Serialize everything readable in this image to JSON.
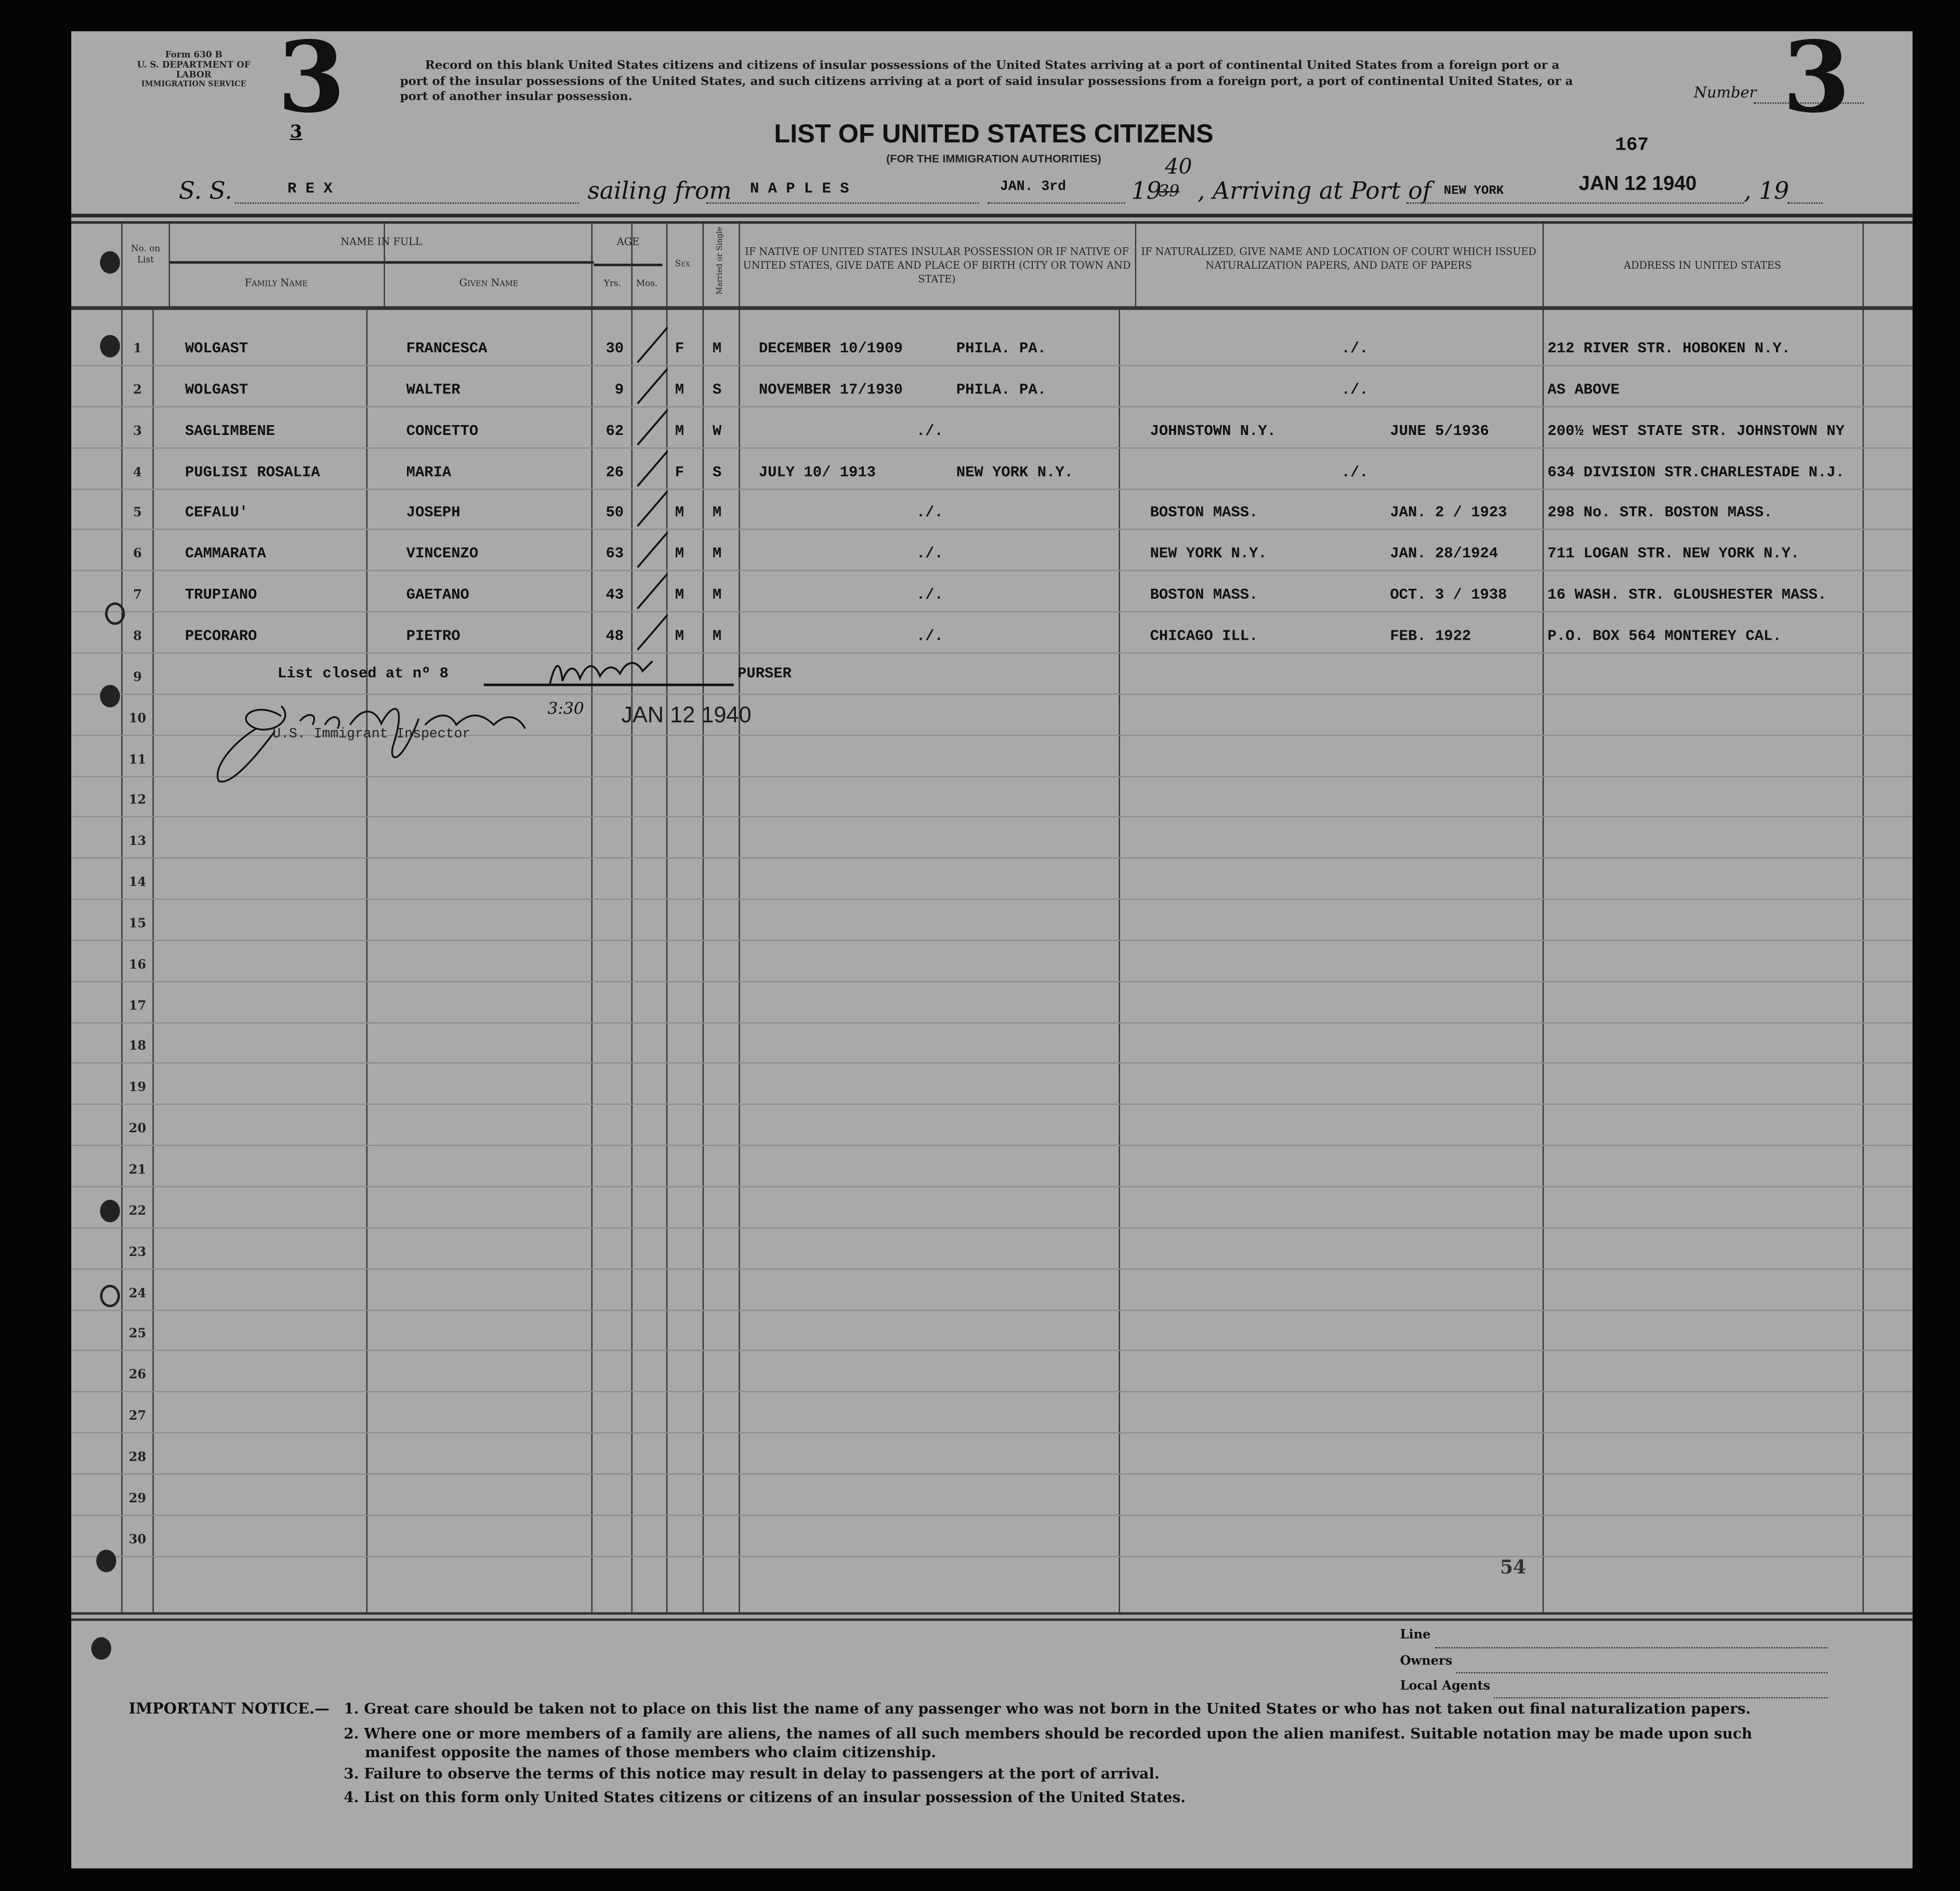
{
  "form": {
    "form_number": "Form 630 B",
    "department": "U. S. DEPARTMENT OF LABOR",
    "service": "IMMIGRATION SERVICE",
    "big_number_left": "3",
    "small_number": "3",
    "number_label": "Number",
    "big_number_right": "3",
    "instructions": "Record on this blank United States citizens and citizens of insular possessions of the United States arriving at a port of continental United States from a foreign port or a port of the insular possessions of the United States, and such citizens arriving at a port of said insular possessions from a foreign port, a port of continental United States, or a port of another insular possession.",
    "title": "LIST OF UNITED STATES CITIZENS",
    "subtitle": "(FOR THE IMMIGRATION AUTHORITIES)",
    "stamp_number": "167"
  },
  "voyage": {
    "ss_label": "S. S.",
    "ship": "R E X",
    "sailing_label": "sailing from",
    "port_from": "N A P L E S",
    "date_from": "JAN. 3rd",
    "year_prefix": "19",
    "year_typed": "39",
    "year_hand": "40",
    "arriving_label": ", Arriving at Port of",
    "port_to": "NEW YORK",
    "arrival_stamp": "JAN 12 1940",
    "year_suffix": ", 19"
  },
  "columns": {
    "no": "No. on List",
    "name_in_full": "NAME IN FULL",
    "family_name": "Family Name",
    "given_name": "Given Name",
    "age": "AGE",
    "yrs": "Yrs.",
    "mos": "Mos.",
    "sex": "Sex",
    "married": "Married or Single",
    "birth": "IF NATIVE OF UNITED STATES INSULAR POSSESSION OR IF NATIVE OF UNITED STATES, GIVE DATE AND PLACE OF BIRTH (CITY OR TOWN AND STATE)",
    "naturalized": "IF NATURALIZED, GIVE NAME AND LOCATION OF COURT WHICH ISSUED NATURALIZATION PAPERS, AND DATE OF PAPERS",
    "address": "ADDRESS IN UNITED STATES"
  },
  "rows": [
    {
      "no": "1",
      "family": "WOLGAST",
      "given": "FRANCESCA",
      "yrs": "30",
      "sex": "F",
      "status": "M",
      "birth_date": "DECEMBER 10/1909",
      "birth_place": "PHILA. PA.",
      "birth_mark": "",
      "court": "",
      "court_mark": "./.",
      "nat_date": "",
      "address": "212 RIVER STR. HOBOKEN N.Y."
    },
    {
      "no": "2",
      "family": "WOLGAST",
      "given": "WALTER",
      "yrs": "9",
      "sex": "M",
      "status": "S",
      "birth_date": "NOVEMBER 17/1930",
      "birth_place": "PHILA. PA.",
      "birth_mark": "",
      "court": "",
      "court_mark": "./.",
      "nat_date": "",
      "address": "AS  ABOVE"
    },
    {
      "no": "3",
      "family": "SAGLIMBENE",
      "given": "CONCETTO",
      "yrs": "62",
      "sex": "M",
      "status": "W",
      "birth_date": "",
      "birth_place": "",
      "birth_mark": "./.",
      "court": "JOHNSTOWN N.Y.",
      "court_mark": "",
      "nat_date": "JUNE  5/1936",
      "address": "200½ WEST STATE STR. JOHNSTOWN NY"
    },
    {
      "no": "4",
      "family": "PUGLISI   ROSALIA",
      "given": "MARIA",
      "yrs": "26",
      "sex": "F",
      "status": "S",
      "birth_date": "JULY  10/ 1913",
      "birth_place": "NEW YORK N.Y.",
      "birth_mark": "",
      "court": "",
      "court_mark": "./.",
      "nat_date": "",
      "address": "634 DIVISION STR.CHARLESTADE N.J."
    },
    {
      "no": "5",
      "family": "CEFALU'",
      "given": "JOSEPH",
      "yrs": "50",
      "sex": "M",
      "status": "M",
      "birth_date": "",
      "birth_place": "",
      "birth_mark": "./.",
      "court": "BOSTON  MASS.",
      "court_mark": "",
      "nat_date": "JAN. 2 / 1923",
      "address": "298 No. STR. BOSTON MASS."
    },
    {
      "no": "6",
      "family": "CAMMARATA",
      "given": "VINCENZO",
      "yrs": "63",
      "sex": "M",
      "status": "M",
      "birth_date": "",
      "birth_place": "",
      "birth_mark": "./.",
      "court": "NEW YORK N.Y.",
      "court_mark": "",
      "nat_date": "JAN. 28/1924",
      "address": "711 LOGAN STR.  NEW YORK N.Y."
    },
    {
      "no": "7",
      "family": "TRUPIANO",
      "given": "GAETANO",
      "yrs": "43",
      "sex": "M",
      "status": "M",
      "birth_date": "",
      "birth_place": "",
      "birth_mark": "./.",
      "court": "BOSTON  MASS.",
      "court_mark": "",
      "nat_date": "OCT. 3 / 1938",
      "address": "16 WASH. STR. GLOUSHESTER MASS."
    },
    {
      "no": "8",
      "family": "PECORARO",
      "given": "PIETRO",
      "yrs": "48",
      "sex": "M",
      "status": "M",
      "birth_date": "",
      "birth_place": "",
      "birth_mark": "./.",
      "court": "CHICAGO  ILL.",
      "court_mark": "",
      "nat_date": "FEB. 1922",
      "address": "P.O. BOX 564 MONTEREY CAL."
    }
  ],
  "row_numbers": [
    "1",
    "2",
    "3",
    "4",
    "5",
    "6",
    "7",
    "8",
    "9",
    "10",
    "11",
    "12",
    "13",
    "14",
    "15",
    "16",
    "17",
    "18",
    "19",
    "20",
    "21",
    "22",
    "23",
    "24",
    "25",
    "26",
    "27",
    "28",
    "29",
    "30"
  ],
  "closing": {
    "closed_text": "List closed at nº 8",
    "purser_label": "PURSER",
    "inspector_signature": "George S. German",
    "inspector_label": "U.S. Immigrant Inspector",
    "time_hand": "3:30",
    "date_stamp": "JAN 12 1940",
    "page_number": "54"
  },
  "footer": {
    "line_label": "Line",
    "owners_label": "Owners",
    "agents_label": "Local Agents",
    "notice_heading": "IMPORTANT NOTICE.—",
    "notices": [
      "1. Great care should be taken not to place on this list the name of any passenger who was not born in the United States or who has not taken out final naturalization papers.",
      "2. Where one or more members of a family are aliens, the names of all such members should be recorded upon the alien manifest.   Suitable notation may be made upon such",
      "manifest opposite the names of those members who claim citizenship.",
      "3. Failure to observe the terms of this notice may result in delay to passengers at the port of arrival.",
      "4. List on this form only United States citizens or citizens of an insular possession of the United States."
    ]
  }
}
